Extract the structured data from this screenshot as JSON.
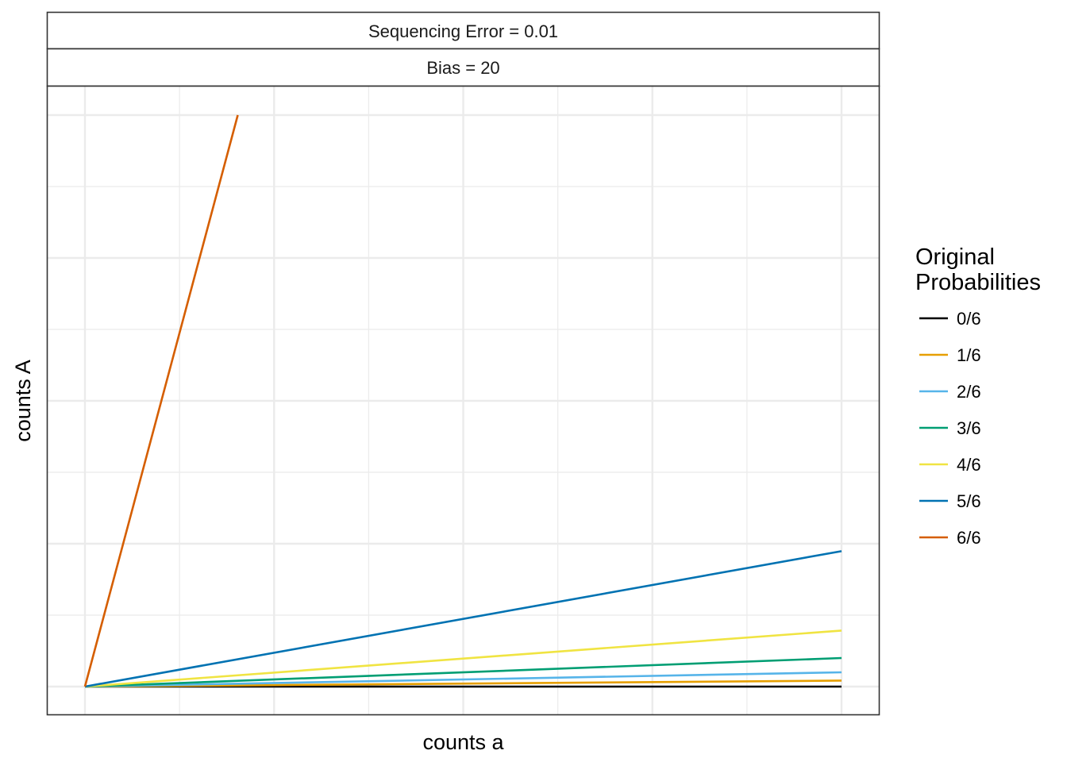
{
  "chart_data": {
    "type": "line",
    "facets": [
      "Sequencing Error = 0.01",
      "Bias = 20"
    ],
    "xlabel": "counts a",
    "ylabel": "counts A",
    "xlim": [
      0,
      100
    ],
    "ylim": [
      -5,
      105
    ],
    "x_major_ticks": [
      0,
      25,
      50,
      75,
      100
    ],
    "y_major_ticks": [
      0,
      25,
      50,
      75,
      100
    ],
    "tick_labels_shown": false,
    "grid": true,
    "legend": {
      "title_lines": [
        "Original",
        "Probabilities"
      ],
      "placement": "right"
    },
    "series": [
      {
        "name": "0/6",
        "color": "#000000",
        "x": [
          0,
          100
        ],
        "y": [
          0,
          0
        ]
      },
      {
        "name": "1/6",
        "color": "#E69F00",
        "x": [
          0,
          100
        ],
        "y": [
          0,
          1.05
        ]
      },
      {
        "name": "2/6",
        "color": "#56B4E9",
        "x": [
          0,
          100
        ],
        "y": [
          0,
          2.5
        ]
      },
      {
        "name": "3/6",
        "color": "#009E73",
        "x": [
          0,
          100
        ],
        "y": [
          0,
          5
        ]
      },
      {
        "name": "4/6",
        "color": "#F0E442",
        "x": [
          0,
          100
        ],
        "y": [
          0,
          9.8
        ]
      },
      {
        "name": "5/6",
        "color": "#0072B2",
        "x": [
          0,
          100
        ],
        "y": [
          0,
          23.7
        ]
      },
      {
        "name": "6/6",
        "color": "#D55E00",
        "x": [
          0,
          20.2
        ],
        "y": [
          0,
          100
        ]
      }
    ]
  }
}
